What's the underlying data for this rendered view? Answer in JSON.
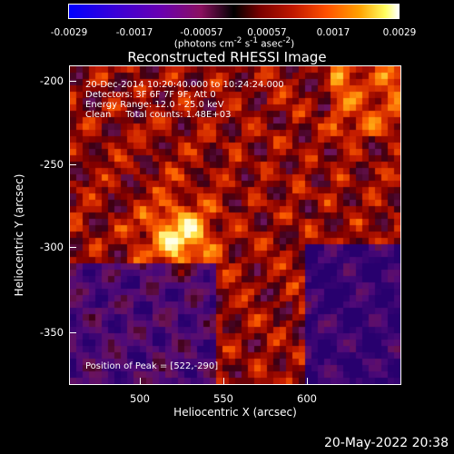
{
  "colorbar": {
    "ticks": [
      "-0.0029",
      "-0.0017",
      "-0.00057",
      "0.00057",
      "0.0017",
      "0.0029"
    ],
    "unit_html": "(photons cm<sup>-2</sup> s<sup>-1</sup> asec<sup>-2</sup>)"
  },
  "title": "Reconstructed RHESSI Image",
  "annotations": {
    "time_range": "20-Dec-2014 10:20:40.000 to 10:24:24.000",
    "detectors": "Detectors: 3F 6F 7F 9F, Att 0",
    "energy": "Energy Range: 12.0 - 25.0 keV",
    "clean": "Clean     Total counts: 1.48E+03",
    "peak": "Position of Peak = [522,-290]"
  },
  "axes": {
    "xlabel": "Heliocentric X (arcsec)",
    "ylabel": "Heliocentric Y (arcsec)",
    "xticks": [
      "500",
      "550",
      "600"
    ],
    "yticks": [
      "-200",
      "-250",
      "-300",
      "-350"
    ],
    "xticks_values": [
      500,
      550,
      600
    ],
    "yticks_values": [
      -200,
      -250,
      -300,
      -350
    ],
    "xlim": [
      460,
      647
    ],
    "ylim": [
      -383,
      -183
    ]
  },
  "peak_position": [
    522,
    -290
  ],
  "footer": "20-May-2022 20:38"
}
